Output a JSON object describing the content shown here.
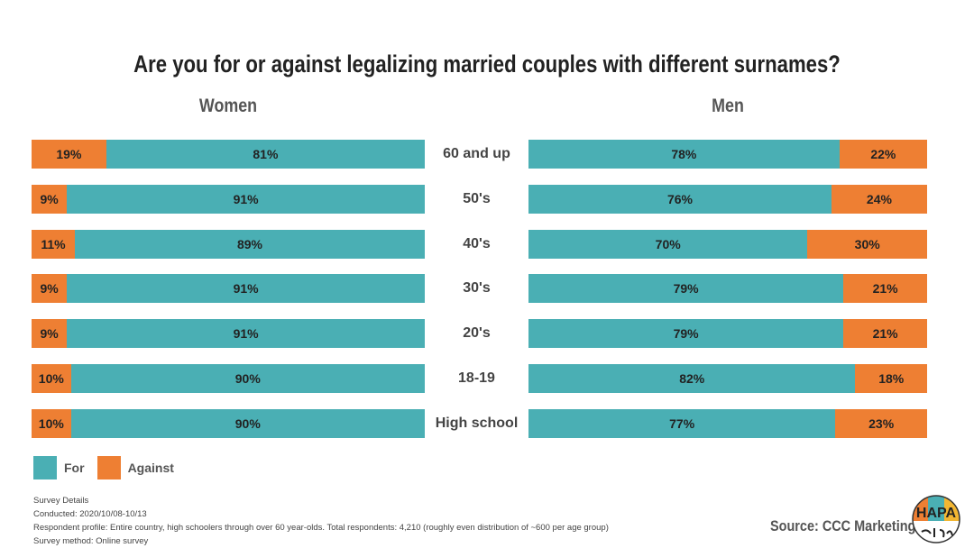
{
  "title": "Are you for or against legalizing married couples with different surnames?",
  "colors": {
    "for": "#4AAFB4",
    "against": "#EE7F33"
  },
  "chart_data": {
    "type": "bar",
    "orientation": "horizontal-stacked",
    "title": "Are you for or against legalizing married couples with different surnames?",
    "categories": [
      "60 and up",
      "50's",
      "40's",
      "30's",
      "20's",
      "18-19",
      "High school"
    ],
    "groups": [
      {
        "name": "Women",
        "series": [
          {
            "name": "Against",
            "values": [
              19,
              9,
              11,
              9,
              9,
              10,
              10
            ]
          },
          {
            "name": "For",
            "values": [
              81,
              91,
              89,
              91,
              91,
              90,
              90
            ]
          }
        ]
      },
      {
        "name": "Men",
        "series": [
          {
            "name": "For",
            "values": [
              78,
              76,
              70,
              79,
              79,
              82,
              77
            ]
          },
          {
            "name": "Against",
            "values": [
              22,
              24,
              30,
              21,
              21,
              18,
              23
            ]
          }
        ]
      }
    ],
    "legend": [
      "For",
      "Against"
    ],
    "legend_position": "bottom-left",
    "unit": "%"
  },
  "notes": [
    "Survey Details",
    "Conducted: 2020/10/08-10/13",
    "Respondent profile: Entire country, high schoolers through over 60 year-olds. Total respondents: 4,210 (roughly even distribution of ~600 per age group)",
    "Survey method: Online survey"
  ],
  "source": "Source: CCC Marketing",
  "logo": {
    "text": "HAPA no nihon"
  }
}
